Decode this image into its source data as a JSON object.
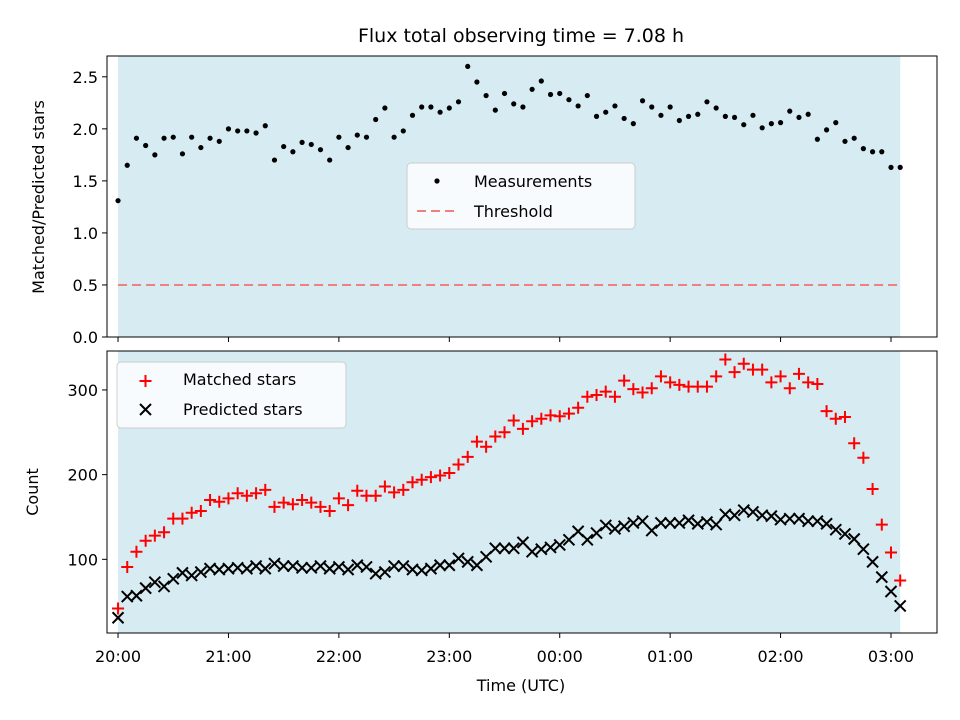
{
  "chart_data": [
    {
      "type": "scatter",
      "title": "Flux total observing time = 7.08 h",
      "xlabel": "",
      "ylabel": "Matched/Predicted stars",
      "ylim": [
        0,
        2.7
      ],
      "yticks": [
        "0.0",
        "0.5",
        "1.0",
        "1.5",
        "2.0",
        "2.5"
      ],
      "xlim": [
        "19:54",
        "03:25"
      ],
      "observing_window": [
        "20:00",
        "03:05"
      ],
      "threshold": 0.5,
      "legend": {
        "position": "center",
        "entries": [
          "Measurements",
          "Threshold"
        ]
      },
      "series": [
        {
          "name": "Measurements",
          "color": "#000000",
          "x": [
            "20:00",
            "20:05",
            "20:10",
            "20:15",
            "20:20",
            "20:25",
            "20:30",
            "20:35",
            "20:40",
            "20:45",
            "20:50",
            "20:55",
            "21:00",
            "21:05",
            "21:10",
            "21:15",
            "21:20",
            "21:25",
            "21:30",
            "21:35",
            "21:40",
            "21:45",
            "21:50",
            "21:55",
            "22:00",
            "22:05",
            "22:10",
            "22:15",
            "22:20",
            "22:25",
            "22:30",
            "22:35",
            "22:40",
            "22:45",
            "22:50",
            "22:55",
            "23:00",
            "23:05",
            "23:10",
            "23:15",
            "23:20",
            "23:25",
            "23:30",
            "23:35",
            "23:40",
            "23:45",
            "23:50",
            "23:55",
            "00:00",
            "00:05",
            "00:10",
            "00:15",
            "00:20",
            "00:25",
            "00:30",
            "00:35",
            "00:40",
            "00:45",
            "00:50",
            "00:55",
            "01:00",
            "01:05",
            "01:10",
            "01:15",
            "01:20",
            "01:25",
            "01:30",
            "01:35",
            "01:40",
            "01:45",
            "01:50",
            "01:55",
            "02:00",
            "02:05",
            "02:10",
            "02:15",
            "02:20",
            "02:25",
            "02:30",
            "02:35",
            "02:40",
            "02:45",
            "02:50",
            "02:55",
            "03:00",
            "03:05"
          ],
          "values": [
            1.31,
            1.65,
            1.91,
            1.84,
            1.75,
            1.91,
            1.92,
            1.76,
            1.92,
            1.82,
            1.91,
            1.88,
            2.0,
            1.98,
            1.98,
            1.96,
            2.03,
            1.7,
            1.83,
            1.78,
            1.87,
            1.85,
            1.8,
            1.7,
            1.92,
            1.82,
            1.94,
            1.92,
            2.09,
            2.2,
            1.92,
            1.98,
            2.13,
            2.21,
            2.21,
            2.16,
            2.2,
            2.26,
            2.6,
            2.45,
            2.32,
            2.18,
            2.34,
            2.24,
            2.21,
            2.38,
            2.46,
            2.33,
            2.34,
            2.28,
            2.22,
            2.32,
            2.12,
            2.16,
            2.22,
            2.1,
            2.05,
            2.27,
            2.21,
            2.13,
            2.21,
            2.08,
            2.12,
            2.14,
            2.26,
            2.2,
            2.12,
            2.11,
            2.04,
            2.13,
            2.01,
            2.05,
            2.06,
            2.17,
            2.11,
            2.14,
            1.9,
            1.99,
            2.06,
            1.88,
            1.91,
            1.81,
            1.78,
            1.78,
            1.63,
            1.63
          ]
        },
        {
          "name": "Threshold",
          "color": "#f08080",
          "values": [
            0.5,
            0.5
          ]
        }
      ]
    },
    {
      "type": "scatter",
      "title": "",
      "xlabel": "Time (UTC)",
      "ylabel": "Count",
      "ylim": [
        13,
        346
      ],
      "yticks": [
        "100",
        "200",
        "300"
      ],
      "xticks": [
        "20:00",
        "21:00",
        "22:00",
        "23:00",
        "00:00",
        "01:00",
        "02:00",
        "03:00"
      ],
      "xlim": [
        "19:54",
        "03:25"
      ],
      "observing_window": [
        "20:00",
        "03:05"
      ],
      "legend": {
        "position": "top-left",
        "entries": [
          "Matched stars",
          "Predicted stars"
        ]
      },
      "x": [
        "20:00",
        "20:05",
        "20:10",
        "20:15",
        "20:20",
        "20:25",
        "20:30",
        "20:35",
        "20:40",
        "20:45",
        "20:50",
        "20:55",
        "21:00",
        "21:05",
        "21:10",
        "21:15",
        "21:20",
        "21:25",
        "21:30",
        "21:35",
        "21:40",
        "21:45",
        "21:50",
        "21:55",
        "22:00",
        "22:05",
        "22:10",
        "22:15",
        "22:20",
        "22:25",
        "22:30",
        "22:35",
        "22:40",
        "22:45",
        "22:50",
        "22:55",
        "23:00",
        "23:05",
        "23:10",
        "23:15",
        "23:20",
        "23:25",
        "23:30",
        "23:35",
        "23:40",
        "23:45",
        "23:50",
        "23:55",
        "00:00",
        "00:05",
        "00:10",
        "00:15",
        "00:20",
        "00:25",
        "00:30",
        "00:35",
        "00:40",
        "00:45",
        "00:50",
        "00:55",
        "01:00",
        "01:05",
        "01:10",
        "01:15",
        "01:20",
        "01:25",
        "01:30",
        "01:35",
        "01:40",
        "01:45",
        "01:50",
        "01:55",
        "02:00",
        "02:05",
        "02:10",
        "02:15",
        "02:20",
        "02:25",
        "02:30",
        "02:35",
        "02:40",
        "02:45",
        "02:50",
        "02:55",
        "03:00",
        "03:05"
      ],
      "series": [
        {
          "name": "Matched stars",
          "color": "#ff0000",
          "marker": "+",
          "values": [
            42,
            91,
            109,
            122,
            128,
            132,
            148,
            148,
            155,
            157,
            170,
            168,
            172,
            178,
            175,
            178,
            182,
            162,
            167,
            165,
            170,
            167,
            162,
            157,
            172,
            164,
            181,
            175,
            175,
            186,
            179,
            182,
            191,
            194,
            197,
            199,
            202,
            212,
            221,
            239,
            233,
            245,
            250,
            264,
            254,
            263,
            266,
            270,
            269,
            272,
            279,
            292,
            294,
            298,
            292,
            311,
            301,
            297,
            302,
            316,
            309,
            306,
            304,
            304,
            304,
            316,
            336,
            321,
            331,
            324,
            324,
            309,
            316,
            302,
            319,
            309,
            307,
            275,
            266,
            268,
            237,
            220,
            183,
            141,
            108,
            75
          ]
        },
        {
          "name": "Predicted stars",
          "color": "#000000",
          "marker": "x",
          "values": [
            31,
            56,
            57,
            66,
            73,
            68,
            77,
            84,
            81,
            85,
            89,
            88,
            89,
            90,
            89,
            92,
            89,
            95,
            92,
            92,
            90,
            90,
            92,
            89,
            91,
            88,
            93,
            91,
            83,
            85,
            92,
            92,
            88,
            87,
            89,
            93,
            93,
            101,
            97,
            93,
            103,
            113,
            113,
            113,
            120,
            109,
            112,
            114,
            117,
            123,
            133,
            123,
            131,
            140,
            136,
            139,
            143,
            145,
            134,
            143,
            143,
            143,
            146,
            142,
            144,
            141,
            153,
            152,
            158,
            156,
            152,
            151,
            147,
            148,
            148,
            145,
            145,
            142,
            135,
            130,
            124,
            112,
            97,
            79,
            62,
            45
          ]
        }
      ]
    }
  ]
}
